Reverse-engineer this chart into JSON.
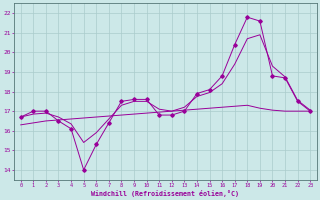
{
  "xlabel": "Windchill (Refroidissement éolien,°C)",
  "bg_color": "#cce8e8",
  "line_color": "#990099",
  "grid_color": "#aacccc",
  "xlim": [
    -0.5,
    23.5
  ],
  "ylim": [
    13.5,
    22.5
  ],
  "yticks": [
    14,
    15,
    16,
    17,
    18,
    19,
    20,
    21,
    22
  ],
  "xticks": [
    0,
    1,
    2,
    3,
    4,
    5,
    6,
    7,
    8,
    9,
    10,
    11,
    12,
    13,
    14,
    15,
    16,
    17,
    18,
    19,
    20,
    21,
    22,
    23
  ],
  "main_line": [
    16.7,
    17.0,
    17.0,
    16.5,
    16.1,
    14.0,
    15.3,
    16.4,
    17.5,
    17.6,
    17.6,
    16.8,
    16.8,
    17.0,
    17.9,
    18.1,
    18.8,
    20.4,
    21.8,
    21.6,
    18.8,
    18.7,
    17.5,
    17.0
  ],
  "regression": [
    16.3,
    16.4,
    16.5,
    16.55,
    16.6,
    16.65,
    16.7,
    16.75,
    16.8,
    16.85,
    16.9,
    16.95,
    17.0,
    17.05,
    17.1,
    17.15,
    17.2,
    17.25,
    17.3,
    17.15,
    17.05,
    17.0,
    17.0,
    17.0
  ],
  "smooth_line": [
    16.7,
    16.85,
    16.9,
    16.7,
    16.35,
    15.4,
    15.9,
    16.6,
    17.3,
    17.5,
    17.5,
    17.1,
    17.0,
    17.2,
    17.75,
    17.95,
    18.4,
    19.4,
    20.7,
    20.9,
    19.3,
    18.75,
    17.55,
    17.05
  ]
}
